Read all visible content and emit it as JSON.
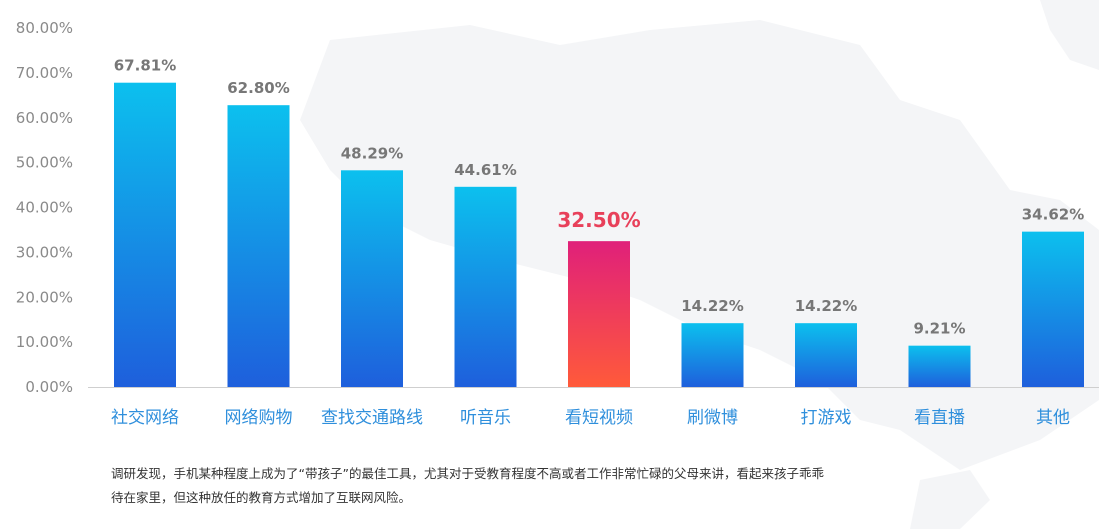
{
  "chart_data": {
    "type": "bar",
    "categories": [
      "社交网络",
      "网络购物",
      "查找交通路线",
      "听音乐",
      "看短视频",
      "刷微博",
      "打游戏",
      "看直播",
      "其他"
    ],
    "values": [
      67.81,
      62.8,
      48.29,
      44.61,
      32.5,
      14.22,
      14.22,
      9.21,
      34.62
    ],
    "value_labels": [
      "67.81%",
      "62.80%",
      "48.29%",
      "44.61%",
      "32.50%",
      "14.22%",
      "14.22%",
      "9.21%",
      "34.62%"
    ],
    "highlight_index": 4,
    "ylim": [
      0,
      80
    ],
    "yticks": [
      0,
      10,
      20,
      30,
      40,
      50,
      60,
      70,
      80
    ],
    "ytick_labels": [
      "0.00%",
      "10.00%",
      "20.00%",
      "30.00%",
      "40.00%",
      "50.00%",
      "60.00%",
      "70.00%",
      "80.00%"
    ],
    "grid": false,
    "colors": {
      "bar_top": "#0cc0ee",
      "bar_bottom": "#1e5fdc",
      "highlight_top": "#e0207a",
      "highlight_bottom": "#ff5a3a",
      "category_text": "#2f8fdc",
      "value_text": "#777777",
      "highlight_text": "#e8405a"
    }
  },
  "caption": {
    "line1": "调研发现，手机某种程度上成为了“带孩子”的最佳工具，尤其对于受教育程度不高或者工作非常忙碌的父母来讲，看起来孩子乖乖",
    "line2": "待在家里，但这种放任的教育方式增加了互联网风险。"
  }
}
